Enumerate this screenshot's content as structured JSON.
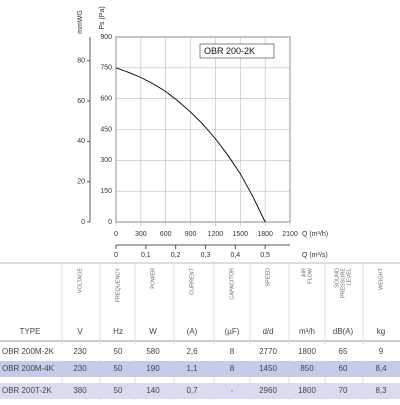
{
  "chart_data": {
    "type": "line",
    "y_label": "Ps (Pa)",
    "y2_label": "mmWG",
    "x_label": "Q (m³/h)",
    "x2_label": "Q (m³/s)",
    "x": [
      0,
      150,
      300,
      450,
      600,
      750,
      900,
      1050,
      1200,
      1350,
      1500,
      1650,
      1800
    ],
    "series": [
      {
        "name": "OBR 200-2K",
        "color": "#000000",
        "values": [
          750,
          728,
          703,
          672,
          635,
          588,
          535,
          475,
          405,
          325,
          235,
          125,
          0
        ]
      }
    ],
    "xlim": [
      0,
      2100
    ],
    "xticks": [
      0,
      300,
      600,
      900,
      1200,
      1500,
      1800,
      2100
    ],
    "x2lim": [
      0,
      0.5833
    ],
    "x2ticks": [
      0,
      {
        "value": 0.1,
        "label": "0,1"
      },
      {
        "value": 0.2,
        "label": "0,2"
      },
      {
        "value": 0.3,
        "label": "0,3"
      },
      {
        "value": 0.4,
        "label": "0,4"
      },
      {
        "value": 0.5,
        "label": "0,5"
      }
    ],
    "ylim": [
      0,
      900
    ],
    "yticks": [
      0,
      150,
      300,
      450,
      600,
      750,
      900
    ],
    "y2lim": [
      0,
      91.8
    ],
    "y2ticks": [
      0,
      20,
      40,
      60,
      80
    ],
    "grid": true,
    "legend": "upper right"
  },
  "table": {
    "columns": [
      "VOLTAGE",
      "FREQUENCY",
      "POWER",
      "CURRENT",
      "CAPACITOR",
      "SPEED",
      "AIR FLOW",
      "SOUND PRESSURE LEVEL",
      "WEIGHT"
    ],
    "units": [
      "TYPE",
      "V",
      "Hz",
      "W",
      "(A)",
      "(µF)",
      "d/d",
      "m³/h",
      "dB(A)",
      "kg"
    ],
    "rows": [
      [
        "OBR 200M-2K",
        "230",
        "50",
        "580",
        "2,6",
        "8",
        "2770",
        "1800",
        "65",
        "9"
      ],
      [
        "OBR 200M-4K",
        "230",
        "50",
        "190",
        "1,1",
        "8",
        "1450",
        "850",
        "60",
        "8,4"
      ],
      [
        "OBR 200T-2K",
        "380",
        "50",
        "140",
        "0,7",
        "-",
        "2960",
        "1800",
        "70",
        "8,3"
      ]
    ]
  }
}
